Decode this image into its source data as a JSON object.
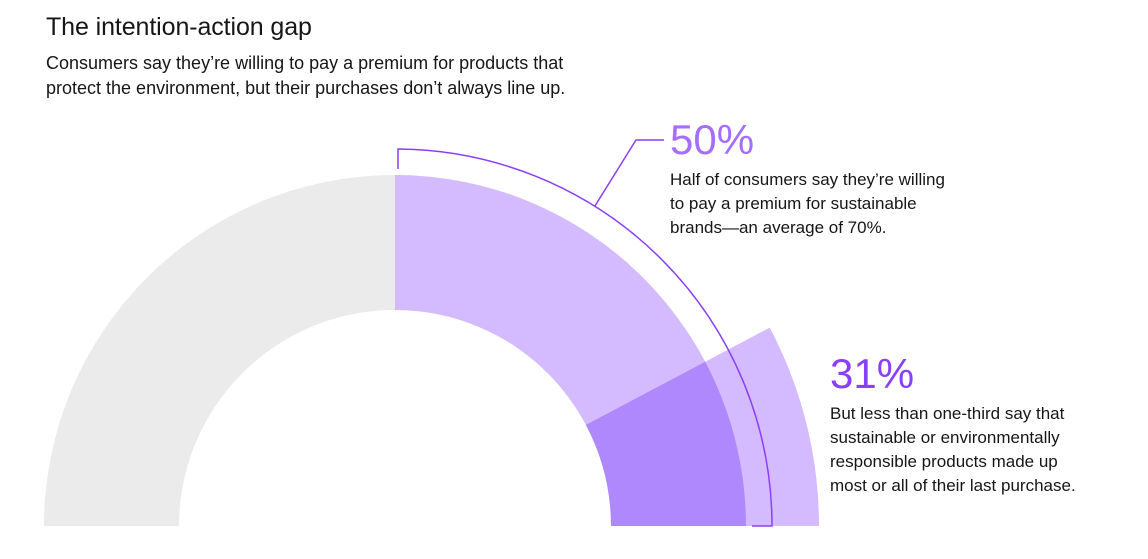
{
  "header": {
    "title": "The intention-action gap",
    "subtitle_lines": [
      "Consumers say they’re willing to pay a premium for products that",
      "protect the environment, but their purchases don’t always line up."
    ]
  },
  "callouts": [
    {
      "value": "50%",
      "description_lines": [
        "Half of consumers say they’re willing",
        "to pay a premium for sustainable",
        "brands—an average of 70%."
      ],
      "color": "#a56eff"
    },
    {
      "value": "31%",
      "description_lines": [
        "But less than one-third say that",
        "sustainable or environmentally",
        "responsible products made up",
        "most or all of their last purchase."
      ],
      "color": "#8a3ffc"
    }
  ],
  "colors": {
    "background_arc": "#ebebeb",
    "willing_segment": "#d4bbff",
    "purchased_segment_inner": "#b088fd",
    "purchased_segment_outer": "#d4bbff",
    "bracket_line": "#8a3ffc"
  },
  "chart_data": {
    "type": "pie",
    "subtype": "semi-donut gauge",
    "title": "The intention-action gap",
    "total_percent": 100,
    "series": [
      {
        "name": "Willing to pay a premium for sustainable brands",
        "value": 50,
        "unit": "%"
      },
      {
        "name": "Sustainable products made up most or all of last purchase",
        "value": 31,
        "unit": "%"
      }
    ],
    "annotations": [
      {
        "label": "50%",
        "target": "Willing to pay a premium for sustainable brands",
        "note": "average premium of 70%"
      },
      {
        "label": "31%",
        "target": "Sustainable products made up most or all of last purchase"
      }
    ],
    "legend": "none"
  }
}
